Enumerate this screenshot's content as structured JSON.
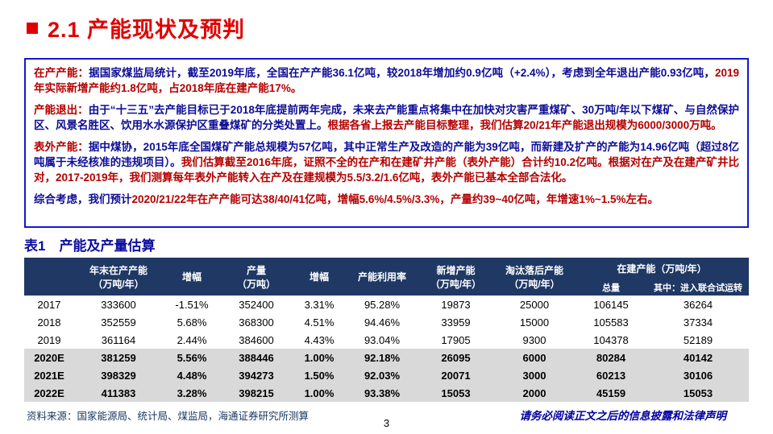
{
  "page": {
    "title": "2.1 产能现状及预判",
    "page_number": "3",
    "source_note": "资料来源：国家能源局、统计局、煤监局，海通证券研究所测算",
    "disclaimer": "请务必阅读正文之后的信息披露和法律声明"
  },
  "colors": {
    "title_red": "#e00000",
    "text_blue": "#0d0d96",
    "text_red": "#b40000",
    "box_border_blue": "#1418c8",
    "table_header_bg": "#1f3864",
    "highlight_row_bg": "#d9d9d9",
    "table_title_blue": "#0d0da0",
    "source_note_blue": "#17375e",
    "disclaimer_blue": "#0000a0"
  },
  "summary_box": {
    "paragraphs": [
      {
        "segments": [
          {
            "text": "在产产能：",
            "color": "red"
          },
          {
            "text": "据国家煤监局统计，截至2019年底，全国在产产能36.1亿吨，较2018年增加约0.9亿吨（+2.4%），考虑到全年退出产能0.93亿吨，",
            "color": "blue"
          },
          {
            "text": "2019年实际新增产能约1.8亿吨，占2018年底在建产能17%。",
            "color": "red"
          }
        ]
      },
      {
        "segments": [
          {
            "text": "产能退出：",
            "color": "red"
          },
          {
            "text": "由于“十三五”去产能目标已于2018年底提前两年完成，未来去产能重点将集中在加快对灾害严重煤矿、30万吨/年以下煤矿、与自然保护区、风景名胜区、饮用水水源保护区重叠煤矿的分类处置上。",
            "color": "blue"
          },
          {
            "text": "根据各省上报去产能目标整理，我们估算20/21年产能退出规模为6000/3000万吨。",
            "color": "red"
          }
        ]
      },
      {
        "segments": [
          {
            "text": "表外产能：",
            "color": "red"
          },
          {
            "text": "据中煤协，2015年底全国煤矿产能总规模为57亿吨，其中正常生产及改造的产能为39亿吨，而新建及扩产的产能为14.96亿吨（超过8亿吨属于未经核准的违规项目）。",
            "color": "blue"
          },
          {
            "text": "我们估算截至2016年底，证照不全的在产和在建矿井产能（表外产能）合计约10.2亿吨。根据对在产及在建产矿井比对，2017-2019年，我们测算每年表外产能转入在产及在建规模为5.5/3.2/1.6亿吨，表外产能已基本全部合法化。",
            "color": "red"
          }
        ]
      },
      {
        "segments": [
          {
            "text": "综合考虑，我们预计",
            "color": "blue"
          },
          {
            "text": "2020/21/22年在产产能可达38/40/41亿吨，增幅5.6%/4.5%/3.3%，产量约39~40亿吨，年增速1%~1.5%左右。",
            "color": "red"
          }
        ]
      }
    ]
  },
  "table": {
    "title": "表1　产能及产量估算",
    "header": {
      "year": "",
      "cols": [
        "年末在产产能\n（万吨/年）",
        "增幅",
        "产量\n（万吨）",
        "增幅",
        "产能利用率",
        "新增产能\n（万吨/年）",
        "淘汰落后产能\n（万吨/年）"
      ],
      "group": {
        "label": "在建产能（万吨/年）",
        "sub": [
          "总量",
          "其中：进入联合试运转"
        ]
      }
    },
    "rows": [
      {
        "year": "2017",
        "highlight": false,
        "cells": [
          "333600",
          "-1.51%",
          "352400",
          "3.31%",
          "95.28%",
          "19873",
          "25000",
          "106145",
          "36264"
        ]
      },
      {
        "year": "2018",
        "highlight": false,
        "cells": [
          "352559",
          "5.68%",
          "368300",
          "4.51%",
          "94.46%",
          "33959",
          "15000",
          "105583",
          "37334"
        ]
      },
      {
        "year": "2019",
        "highlight": false,
        "cells": [
          "361164",
          "2.44%",
          "384600",
          "4.43%",
          "93.04%",
          "17905",
          "9300",
          "104378",
          "52189"
        ]
      },
      {
        "year": "2020E",
        "highlight": true,
        "cells": [
          "381259",
          "5.56%",
          "388446",
          "1.00%",
          "92.18%",
          "26095",
          "6000",
          "80284",
          "40142"
        ]
      },
      {
        "year": "2021E",
        "highlight": true,
        "cells": [
          "398329",
          "4.48%",
          "394273",
          "1.50%",
          "92.03%",
          "20071",
          "3000",
          "60213",
          "30106"
        ]
      },
      {
        "year": "2022E",
        "highlight": true,
        "cells": [
          "411383",
          "3.28%",
          "398215",
          "1.00%",
          "93.38%",
          "15053",
          "2000",
          "45159",
          "15053"
        ]
      }
    ]
  }
}
